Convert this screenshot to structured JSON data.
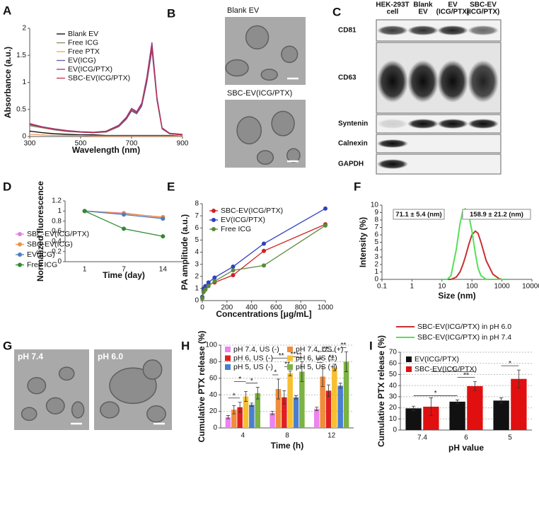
{
  "chart_data": [
    {
      "panel": "A",
      "type": "line",
      "xlabel": "Wavelength (nm)",
      "ylabel": "Absorbance (a.u.)",
      "xlim": [
        300,
        900
      ],
      "xticks": [
        300,
        500,
        700,
        900
      ],
      "ylim": [
        0,
        2
      ],
      "yticks": [
        0,
        0.5,
        1,
        1.5,
        2
      ],
      "x": [
        300,
        350,
        400,
        450,
        500,
        550,
        600,
        650,
        680,
        700,
        720,
        740,
        760,
        780,
        800,
        820,
        850,
        900
      ],
      "series": [
        {
          "name": "Blank EV",
          "color": "#000000",
          "values": [
            0.1,
            0.07,
            0.05,
            0.04,
            0.03,
            0.03,
            0.02,
            0.02,
            0.02,
            0.02,
            0.02,
            0.02,
            0.02,
            0.02,
            0.02,
            0.02,
            0.02,
            0.01
          ]
        },
        {
          "name": "Free ICG",
          "color": "#7a8f5a",
          "values": [
            0.2,
            0.16,
            0.12,
            0.09,
            0.08,
            0.07,
            0.08,
            0.18,
            0.32,
            0.48,
            0.43,
            0.58,
            1.05,
            1.68,
            0.68,
            0.14,
            0.05,
            0.03
          ]
        },
        {
          "name": "Free PTX",
          "color": "#f4a460",
          "values": [
            0.04,
            0.03,
            0.02,
            0.02,
            0.02,
            0.01,
            0.01,
            0.01,
            0.01,
            0.01,
            0.01,
            0.01,
            0.01,
            0.01,
            0.01,
            0.01,
            0.01,
            0.01
          ]
        },
        {
          "name": "EV(ICG)",
          "color": "#5b5ea6",
          "values": [
            0.22,
            0.17,
            0.13,
            0.1,
            0.08,
            0.07,
            0.09,
            0.19,
            0.33,
            0.47,
            0.42,
            0.56,
            1.0,
            1.6,
            0.66,
            0.14,
            0.05,
            0.03
          ]
        },
        {
          "name": "EV(ICG/PTX)",
          "color": "#8b3a8b",
          "values": [
            0.24,
            0.18,
            0.14,
            0.11,
            0.09,
            0.08,
            0.1,
            0.21,
            0.36,
            0.52,
            0.46,
            0.62,
            1.1,
            1.74,
            0.72,
            0.16,
            0.06,
            0.04
          ]
        },
        {
          "name": "SBC-EV(ICG/PTX)",
          "color": "#c0304f",
          "values": [
            0.23,
            0.17,
            0.13,
            0.1,
            0.08,
            0.07,
            0.09,
            0.2,
            0.34,
            0.5,
            0.44,
            0.6,
            1.07,
            1.66,
            0.7,
            0.15,
            0.05,
            0.03
          ]
        }
      ]
    },
    {
      "panel": "D",
      "type": "line",
      "markers": true,
      "xlabel": "Time (day)",
      "ylabel": "Normalized fluorescence",
      "categories": [
        "1",
        "7",
        "14"
      ],
      "ylim": [
        0,
        1.2
      ],
      "yticks": [
        0,
        0.2,
        0.4,
        0.6,
        0.8,
        1,
        1.2
      ],
      "series": [
        {
          "name": "SBC-EV(ICG/PTX)",
          "color": "#e07ee0",
          "values": [
            1,
            0.96,
            0.87
          ]
        },
        {
          "name": "SBC-EV(ICG)",
          "color": "#f09040",
          "values": [
            1,
            0.95,
            0.88
          ]
        },
        {
          "name": "EV(ICG)",
          "color": "#4a7fc0",
          "values": [
            1,
            0.93,
            0.85
          ]
        },
        {
          "name": "Free ICG",
          "color": "#2e8b2e",
          "values": [
            1,
            0.65,
            0.5
          ]
        }
      ]
    },
    {
      "panel": "E",
      "type": "line",
      "markers": true,
      "xlabel": "Concentrations [μg/mL]",
      "ylabel": "PA amplitude (a.u.)",
      "xlim": [
        0,
        1000
      ],
      "xticks": [
        0,
        200,
        400,
        600,
        800,
        1000
      ],
      "ylim": [
        0,
        8
      ],
      "yticks": [
        0,
        1,
        2,
        3,
        4,
        5,
        6,
        7,
        8
      ],
      "x": [
        0,
        10,
        25,
        50,
        100,
        250,
        500,
        1000
      ],
      "series": [
        {
          "name": "SBC-EV(ICG/PTX)",
          "color": "#d02020",
          "values": [
            0.3,
            0.8,
            1.0,
            1.3,
            1.5,
            2.1,
            4.1,
            6.3
          ]
        },
        {
          "name": "EV(ICG/PTX)",
          "color": "#3040c0",
          "values": [
            0.3,
            1.0,
            1.2,
            1.5,
            1.9,
            2.8,
            4.7,
            7.6
          ]
        },
        {
          "name": "Free ICG",
          "color": "#5a8a3a",
          "values": [
            0.2,
            0.7,
            0.9,
            1.2,
            1.6,
            2.5,
            2.9,
            6.2
          ]
        }
      ]
    },
    {
      "panel": "F",
      "type": "line",
      "xscale": "log",
      "xlabel": "Size (nm)",
      "ylabel": "Intensity (%)",
      "xlim": [
        0.1,
        10000
      ],
      "xticks": [
        0.1,
        1,
        10,
        100,
        1000,
        10000
      ],
      "ylim": [
        0,
        10
      ],
      "yticks": [
        0,
        1,
        2,
        3,
        4,
        5,
        6,
        7,
        8,
        9,
        10
      ],
      "annotations": [
        "71.1 ± 5.4 (nm)",
        "158.9 ± 21.2 (nm)"
      ],
      "x": [
        10,
        15,
        20,
        30,
        40,
        50,
        60,
        80,
        100,
        130,
        160,
        200,
        300,
        500,
        800,
        1000,
        1500
      ],
      "series": [
        {
          "name": "SBC-EV(ICG/PTX) in pH 6.0",
          "color": "#c8302f",
          "values": [
            0,
            0,
            0,
            0.3,
            1,
            2,
            3,
            4.8,
            6,
            6.5,
            6.2,
            5,
            2.5,
            0.7,
            0.1,
            0,
            0
          ]
        },
        {
          "name": "SBC-EV(ICG/PTX) in pH 7.4",
          "color": "#55e055",
          "values": [
            0,
            0,
            0.5,
            4,
            7.5,
            9.3,
            9.5,
            8.5,
            6.5,
            3.5,
            1.5,
            0.5,
            0,
            0,
            0,
            0,
            0
          ]
        }
      ]
    },
    {
      "panel": "H",
      "type": "bar",
      "grid": true,
      "xlabel": "Time (h)",
      "ylabel": "Cumulative PTX release (%)",
      "categories": [
        "4",
        "8",
        "12"
      ],
      "ylim": [
        0,
        100
      ],
      "yticks": [
        0,
        20,
        40,
        60,
        80,
        100
      ],
      "significance": [
        "*",
        "*",
        "*",
        "*",
        "**",
        "**",
        "**",
        "**",
        "**",
        "**",
        "**",
        "**"
      ],
      "series": [
        {
          "name": "pH 7.4, US (-)",
          "color": "#ee82ee",
          "values": [
            13,
            18,
            23
          ],
          "errors": [
            2,
            2,
            2
          ]
        },
        {
          "name": "pH 7.4, US (+)",
          "color": "#f08c3c",
          "values": [
            22,
            47,
            62
          ],
          "errors": [
            5,
            12,
            12
          ]
        },
        {
          "name": "pH 6, US (-)",
          "color": "#e02020",
          "values": [
            25,
            37,
            45
          ],
          "errors": [
            6,
            8,
            7
          ]
        },
        {
          "name": "pH 6, US (+)",
          "color": "#f8c030",
          "values": [
            38,
            66,
            73
          ],
          "errors": [
            6,
            3,
            4
          ]
        },
        {
          "name": "pH 5, US (-)",
          "color": "#4a7fd0",
          "values": [
            28,
            37,
            51
          ],
          "errors": [
            2,
            2,
            3
          ]
        },
        {
          "name": "pH 5, US (+)",
          "color": "#7cb342",
          "values": [
            42,
            68,
            80
          ],
          "errors": [
            7,
            12,
            12
          ]
        }
      ]
    },
    {
      "panel": "I",
      "type": "bar",
      "grid": true,
      "xlabel": "pH value",
      "ylabel": "Cumulative PTX release (%)",
      "categories": [
        "7.4",
        "6",
        "5"
      ],
      "ylim": [
        0,
        70
      ],
      "yticks": [
        0,
        10,
        20,
        30,
        40,
        50,
        60,
        70
      ],
      "significance": [
        "*",
        "*",
        "**",
        "*"
      ],
      "series": [
        {
          "name": "EV(ICG/PTX)",
          "color": "#111111",
          "values": [
            19.5,
            25.5,
            26.5
          ],
          "errors": [
            2,
            1.5,
            2.5
          ]
        },
        {
          "name": "SBC-EV(ICG/PTX)",
          "color": "#e01010",
          "values": [
            21,
            39.5,
            46
          ],
          "errors": [
            8,
            4,
            8
          ]
        }
      ]
    }
  ],
  "micrographs": [
    {
      "panel": "B",
      "captions": [
        "Blank EV",
        "SBC-EV(ICG/PTX)"
      ]
    },
    {
      "panel": "G",
      "captions": [
        "pH 7.4",
        "pH 6.0"
      ]
    }
  ],
  "western_blot": {
    "panel": "C",
    "columns": [
      [
        "HEK-293T",
        "cell"
      ],
      [
        "Blank",
        "EV"
      ],
      [
        "EV",
        "(ICG/PTX)"
      ],
      [
        "SBC-EV",
        "(ICG/PTX)"
      ]
    ],
    "rows": [
      "CD81",
      "CD63",
      "Syntenin",
      "Calnexin",
      "GAPDH"
    ]
  }
}
